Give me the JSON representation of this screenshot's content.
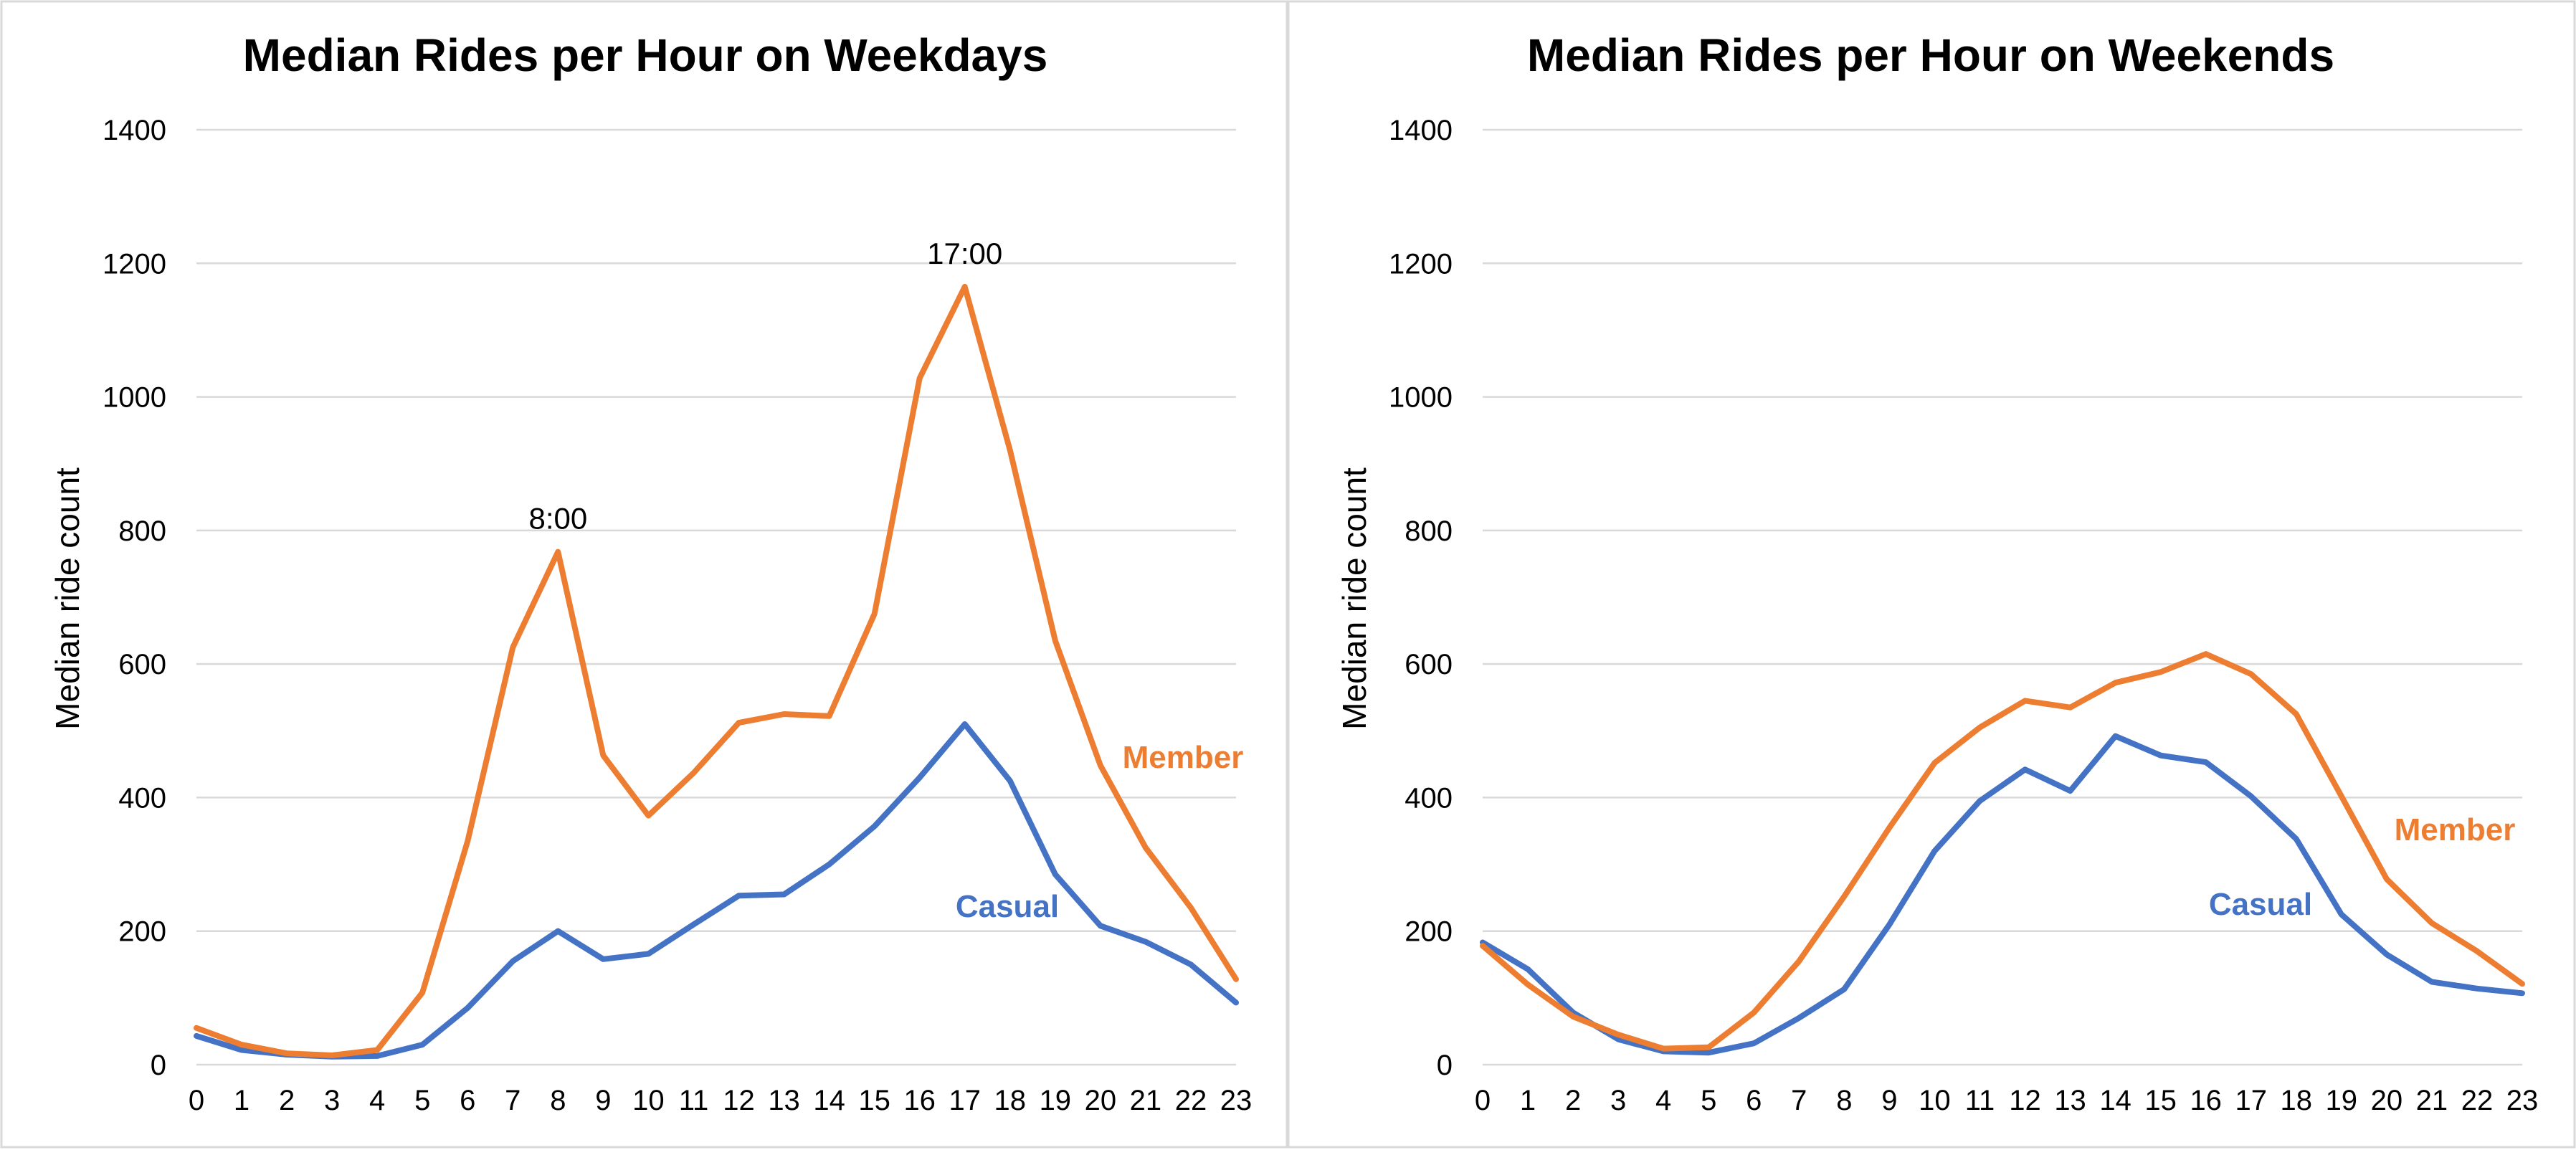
{
  "chart_data": [
    {
      "type": "line",
      "title": "Median Rides per Hour on Weekdays",
      "xlabel": "",
      "ylabel": "Median ride count",
      "x": [
        0,
        1,
        2,
        3,
        4,
        5,
        6,
        7,
        8,
        9,
        10,
        11,
        12,
        13,
        14,
        15,
        16,
        17,
        18,
        19,
        20,
        21,
        22,
        23
      ],
      "x_tick_labels": [
        "0",
        "1",
        "2",
        "3",
        "4",
        "5",
        "6",
        "7",
        "8",
        "9",
        "10",
        "11",
        "12",
        "13",
        "14",
        "15",
        "16",
        "17",
        "18",
        "19",
        "20",
        "21",
        "22",
        "23"
      ],
      "ylim": [
        0,
        1400
      ],
      "y_ticks": [
        0,
        200,
        400,
        600,
        800,
        1000,
        1200,
        1400
      ],
      "y_tick_labels": [
        "0",
        "200",
        "400",
        "600",
        "800",
        "1000",
        "1200",
        "1400"
      ],
      "grid": true,
      "series": [
        {
          "name": "Member",
          "color": "#ED7D31",
          "values": [
            55,
            30,
            17,
            14,
            22,
            108,
            335,
            625,
            768,
            463,
            373,
            437,
            512,
            525,
            522,
            675,
            1028,
            1165,
            920,
            635,
            448,
            325,
            235,
            128
          ]
        },
        {
          "name": "Casual",
          "color": "#4472C4",
          "values": [
            43,
            22,
            15,
            12,
            13,
            30,
            85,
            155,
            200,
            158,
            166,
            210,
            253,
            255,
            300,
            357,
            430,
            510,
            425,
            285,
            208,
            184,
            150,
            93
          ]
        }
      ],
      "annotations": [
        {
          "text": "8:00",
          "x": 8,
          "y": 768
        },
        {
          "text": "17:00",
          "x": 17,
          "y": 1165
        }
      ]
    },
    {
      "type": "line",
      "title": "Median Rides per Hour on Weekends",
      "xlabel": "",
      "ylabel": "Median ride count",
      "x": [
        0,
        1,
        2,
        3,
        4,
        5,
        6,
        7,
        8,
        9,
        10,
        11,
        12,
        13,
        14,
        15,
        16,
        17,
        18,
        19,
        20,
        21,
        22,
        23
      ],
      "x_tick_labels": [
        "0",
        "1",
        "2",
        "3",
        "4",
        "5",
        "6",
        "7",
        "8",
        "9",
        "10",
        "11",
        "12",
        "13",
        "14",
        "15",
        "16",
        "17",
        "18",
        "19",
        "20",
        "21",
        "22",
        "23"
      ],
      "ylim": [
        0,
        1400
      ],
      "y_ticks": [
        0,
        200,
        400,
        600,
        800,
        1000,
        1200,
        1400
      ],
      "y_tick_labels": [
        "0",
        "200",
        "400",
        "600",
        "800",
        "1000",
        "1200",
        "1400"
      ],
      "grid": true,
      "series": [
        {
          "name": "Member",
          "color": "#ED7D31",
          "values": [
            178,
            120,
            72,
            45,
            24,
            26,
            78,
            155,
            252,
            355,
            452,
            505,
            545,
            535,
            572,
            588,
            615,
            585,
            525,
            402,
            278,
            212,
            170,
            121
          ]
        },
        {
          "name": "Casual",
          "color": "#4472C4",
          "values": [
            183,
            143,
            78,
            38,
            20,
            18,
            32,
            70,
            113,
            210,
            320,
            395,
            442,
            410,
            492,
            463,
            453,
            402,
            338,
            225,
            165,
            124,
            114,
            107
          ]
        }
      ],
      "annotations": []
    }
  ]
}
